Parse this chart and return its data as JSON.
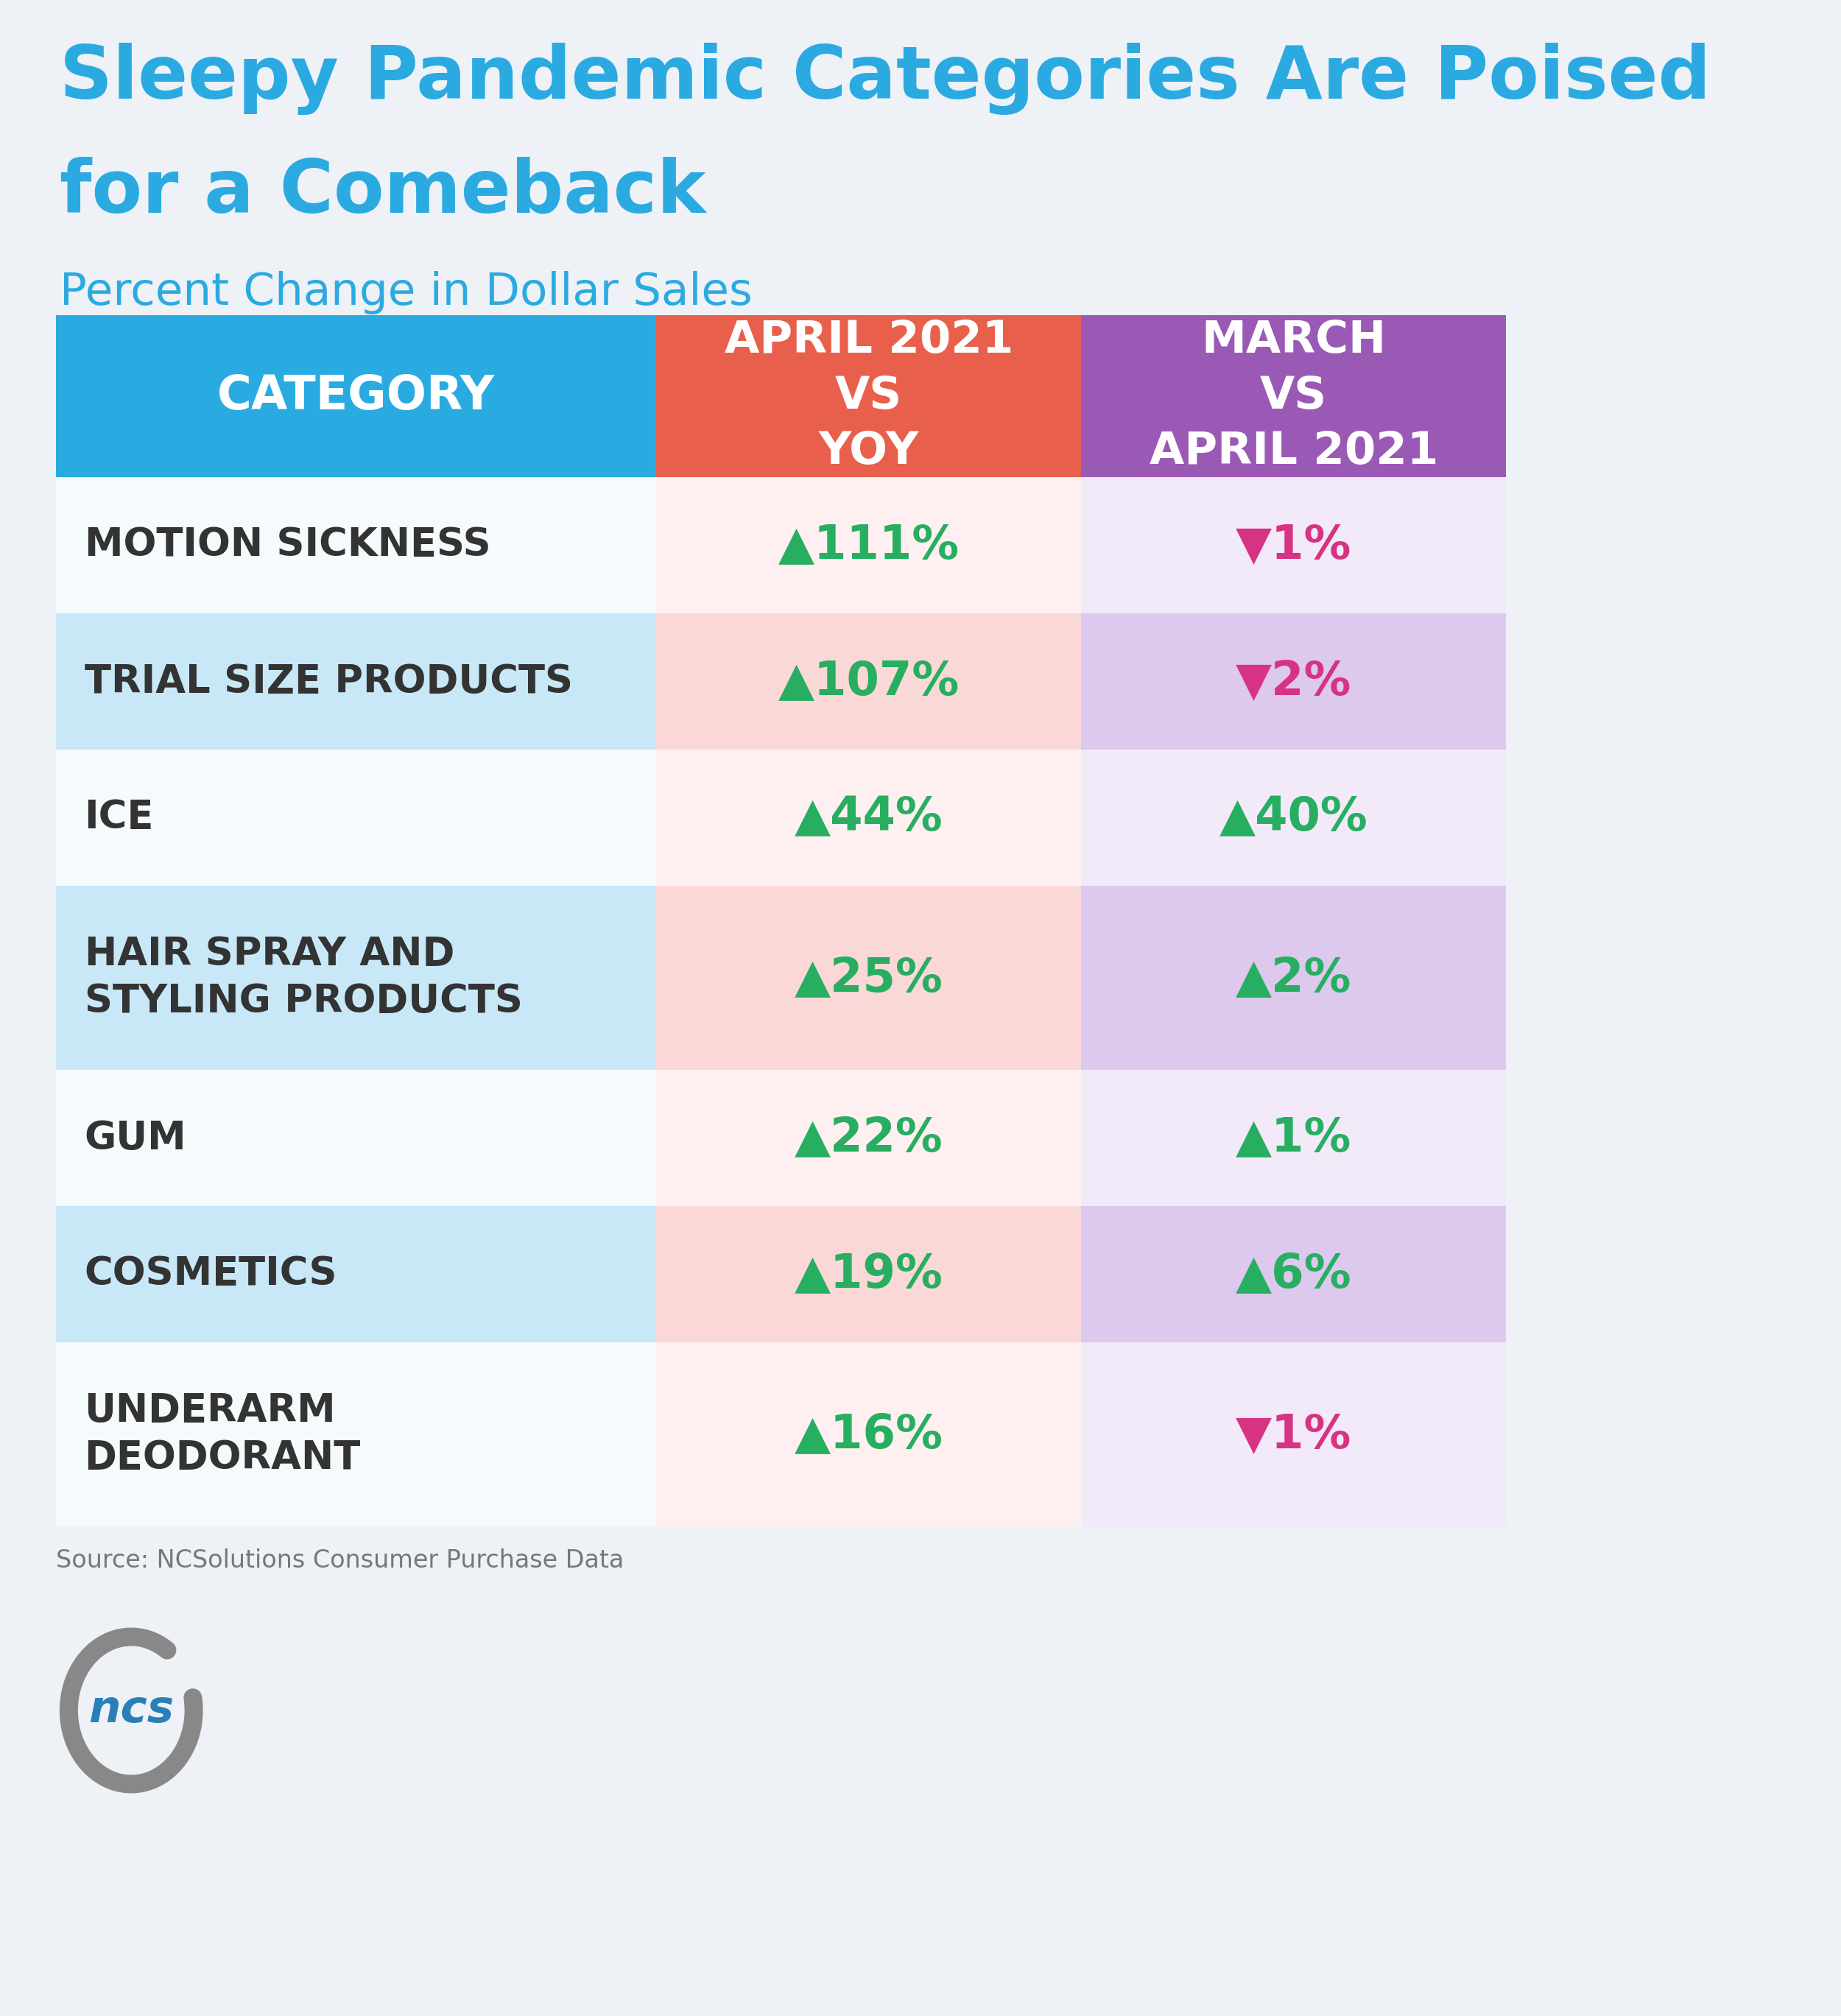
{
  "title_line1": "Sleepy Pandemic Categories Are Poised",
  "title_line2": "for a Comeback",
  "subtitle": "Percent Change in Dollar Sales",
  "bg_color": "#eef1f5",
  "header_col1": "CATEGORY",
  "header_col2": "APRIL 2021\nVS\nYOY",
  "header_col3": "MARCH\nVS\nAPRIL 2021",
  "header_col1_bg": "#29abe2",
  "header_col2_bg": "#e8604c",
  "header_col3_bg": "#9b59b6",
  "header_text_color": "#ffffff",
  "categories": [
    "MOTION SICKNESS",
    "TRIAL SIZE PRODUCTS",
    "ICE",
    "HAIR SPRAY AND\nSTYLING PRODUCTS",
    "GUM",
    "COSMETICS",
    "UNDERARM\nDEODORANT"
  ],
  "col1_values": [
    "▲111%",
    "▲107%",
    "▲44%",
    "▲25%",
    "▲22%",
    "▲19%",
    "▲16%"
  ],
  "col2_values": [
    "▼1%",
    "▼2%",
    "▲40%",
    "▲2%",
    "▲1%",
    "▲6%",
    "▼1%"
  ],
  "col1_up": [
    true,
    true,
    true,
    true,
    true,
    true,
    true
  ],
  "col2_up": [
    false,
    false,
    true,
    true,
    true,
    true,
    false
  ],
  "up_color": "#27ae60",
  "down_color": "#d63384",
  "row_cat_bg_A": "#f5fafd",
  "row_cat_bg_B": "#c9e8f7",
  "row_col1_bg_A": "#fef0f0",
  "row_col1_bg_B": "#fad8d8",
  "row_col2_bg_A": "#f2eaf8",
  "row_col2_bg_B": "#ddc8ee",
  "cat_row_pattern": [
    0,
    1,
    0,
    1,
    0,
    1,
    0
  ],
  "source_text": "Source: NCSolutions Consumer Purchase Data",
  "source_color": "#777777",
  "title_color": "#2baae1",
  "subtitle_color": "#2baae1",
  "cat_text_color": "#333333",
  "ncs_circle_color": "#888888",
  "ncs_text_color": "#2980b9"
}
